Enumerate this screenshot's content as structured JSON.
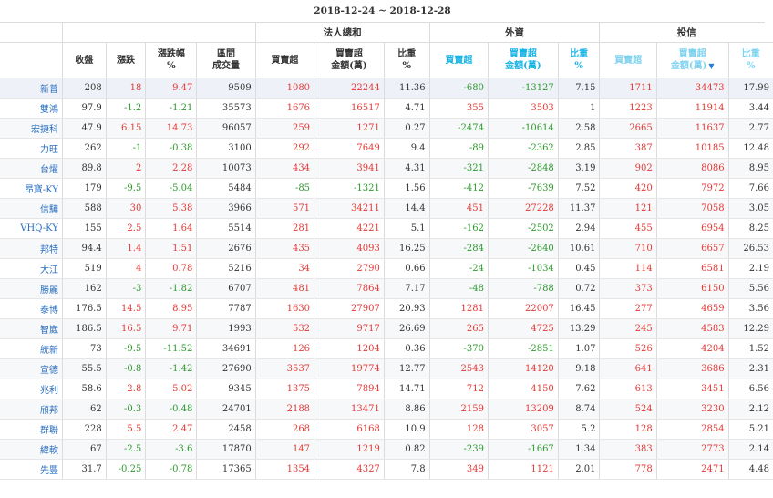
{
  "title": "2018-12-24 ~ 2018-12-28",
  "groups": {
    "institutional_total": "法人總和",
    "foreign": "外資",
    "investment_trust": "投信"
  },
  "headers": {
    "close": "收盤",
    "change": "漲跌",
    "change_pct_line1": "漲跌幅",
    "change_pct_line2": "%",
    "volume_line1": "區間",
    "volume_line2": "成交量",
    "net_buy": "買賣超",
    "net_amount_line1": "買賣超",
    "net_amount_line2": "金額(萬)",
    "ratio_line1": "比重",
    "ratio_line2": "%",
    "sort_indicator": "▼"
  },
  "rows": [
    {
      "name": "新普",
      "close": "208",
      "change": "18",
      "pct": "9.47",
      "vol": "9509",
      "t_net": "1080",
      "t_amt": "22244",
      "t_ratio": "11.36",
      "f_net": "-680",
      "f_amt": "-13127",
      "f_ratio": "7.15",
      "i_net": "1711",
      "i_amt": "34473",
      "i_ratio": "17.99"
    },
    {
      "name": "雙鴻",
      "close": "97.9",
      "change": "-1.2",
      "pct": "-1.21",
      "vol": "35573",
      "t_net": "1676",
      "t_amt": "16517",
      "t_ratio": "4.71",
      "f_net": "355",
      "f_amt": "3503",
      "f_ratio": "1",
      "i_net": "1223",
      "i_amt": "11914",
      "i_ratio": "3.44"
    },
    {
      "name": "宏捷科",
      "close": "47.9",
      "change": "6.15",
      "pct": "14.73",
      "vol": "96057",
      "t_net": "259",
      "t_amt": "1271",
      "t_ratio": "0.27",
      "f_net": "-2474",
      "f_amt": "-10614",
      "f_ratio": "2.58",
      "i_net": "2665",
      "i_amt": "11637",
      "i_ratio": "2.77"
    },
    {
      "name": "力旺",
      "close": "262",
      "change": "-1",
      "pct": "-0.38",
      "vol": "3100",
      "t_net": "292",
      "t_amt": "7649",
      "t_ratio": "9.4",
      "f_net": "-89",
      "f_amt": "-2362",
      "f_ratio": "2.85",
      "i_net": "387",
      "i_amt": "10185",
      "i_ratio": "12.48"
    },
    {
      "name": "台燿",
      "close": "89.8",
      "change": "2",
      "pct": "2.28",
      "vol": "10073",
      "t_net": "434",
      "t_amt": "3941",
      "t_ratio": "4.31",
      "f_net": "-321",
      "f_amt": "-2848",
      "f_ratio": "3.19",
      "i_net": "902",
      "i_amt": "8086",
      "i_ratio": "8.95"
    },
    {
      "name": "昂寶-KY",
      "close": "179",
      "change": "-9.5",
      "pct": "-5.04",
      "vol": "5484",
      "t_net": "-85",
      "t_amt": "-1321",
      "t_ratio": "1.56",
      "f_net": "-412",
      "f_amt": "-7639",
      "f_ratio": "7.52",
      "i_net": "420",
      "i_amt": "7972",
      "i_ratio": "7.66"
    },
    {
      "name": "信驊",
      "close": "588",
      "change": "30",
      "pct": "5.38",
      "vol": "3966",
      "t_net": "571",
      "t_amt": "34211",
      "t_ratio": "14.4",
      "f_net": "451",
      "f_amt": "27228",
      "f_ratio": "11.37",
      "i_net": "121",
      "i_amt": "7058",
      "i_ratio": "3.05"
    },
    {
      "name": "VHQ-KY",
      "close": "155",
      "change": "2.5",
      "pct": "1.64",
      "vol": "5514",
      "t_net": "281",
      "t_amt": "4221",
      "t_ratio": "5.1",
      "f_net": "-162",
      "f_amt": "-2502",
      "f_ratio": "2.94",
      "i_net": "455",
      "i_amt": "6954",
      "i_ratio": "8.25"
    },
    {
      "name": "邦特",
      "close": "94.4",
      "change": "1.4",
      "pct": "1.51",
      "vol": "2676",
      "t_net": "435",
      "t_amt": "4093",
      "t_ratio": "16.25",
      "f_net": "-284",
      "f_amt": "-2640",
      "f_ratio": "10.61",
      "i_net": "710",
      "i_amt": "6657",
      "i_ratio": "26.53"
    },
    {
      "name": "大江",
      "close": "519",
      "change": "4",
      "pct": "0.78",
      "vol": "5216",
      "t_net": "34",
      "t_amt": "2790",
      "t_ratio": "0.66",
      "f_net": "-24",
      "f_amt": "-1034",
      "f_ratio": "0.45",
      "i_net": "114",
      "i_amt": "6581",
      "i_ratio": "2.19"
    },
    {
      "name": "勝麗",
      "close": "162",
      "change": "-3",
      "pct": "-1.82",
      "vol": "6707",
      "t_net": "481",
      "t_amt": "7864",
      "t_ratio": "7.17",
      "f_net": "-48",
      "f_amt": "-788",
      "f_ratio": "0.72",
      "i_net": "373",
      "i_amt": "6150",
      "i_ratio": "5.56"
    },
    {
      "name": "泰博",
      "close": "176.5",
      "change": "14.5",
      "pct": "8.95",
      "vol": "7787",
      "t_net": "1630",
      "t_amt": "27907",
      "t_ratio": "20.93",
      "f_net": "1281",
      "f_amt": "22007",
      "f_ratio": "16.45",
      "i_net": "277",
      "i_amt": "4659",
      "i_ratio": "3.56"
    },
    {
      "name": "智崴",
      "close": "186.5",
      "change": "16.5",
      "pct": "9.71",
      "vol": "1993",
      "t_net": "532",
      "t_amt": "9717",
      "t_ratio": "26.69",
      "f_net": "265",
      "f_amt": "4725",
      "f_ratio": "13.29",
      "i_net": "245",
      "i_amt": "4583",
      "i_ratio": "12.29"
    },
    {
      "name": "統新",
      "close": "73",
      "change": "-9.5",
      "pct": "-11.52",
      "vol": "34691",
      "t_net": "126",
      "t_amt": "1204",
      "t_ratio": "0.36",
      "f_net": "-370",
      "f_amt": "-2851",
      "f_ratio": "1.07",
      "i_net": "526",
      "i_amt": "4204",
      "i_ratio": "1.52"
    },
    {
      "name": "宣德",
      "close": "55.5",
      "change": "-0.8",
      "pct": "-1.42",
      "vol": "27690",
      "t_net": "3537",
      "t_amt": "19774",
      "t_ratio": "12.77",
      "f_net": "2543",
      "f_amt": "14120",
      "f_ratio": "9.18",
      "i_net": "641",
      "i_amt": "3686",
      "i_ratio": "2.31"
    },
    {
      "name": "兆利",
      "close": "58.6",
      "change": "2.8",
      "pct": "5.02",
      "vol": "9345",
      "t_net": "1375",
      "t_amt": "7894",
      "t_ratio": "14.71",
      "f_net": "712",
      "f_amt": "4150",
      "f_ratio": "7.62",
      "i_net": "613",
      "i_amt": "3451",
      "i_ratio": "6.56"
    },
    {
      "name": "頎邦",
      "close": "62",
      "change": "-0.3",
      "pct": "-0.48",
      "vol": "24701",
      "t_net": "2188",
      "t_amt": "13471",
      "t_ratio": "8.86",
      "f_net": "2159",
      "f_amt": "13209",
      "f_ratio": "8.74",
      "i_net": "524",
      "i_amt": "3230",
      "i_ratio": "2.12"
    },
    {
      "name": "群聯",
      "close": "228",
      "change": "5.5",
      "pct": "2.47",
      "vol": "2458",
      "t_net": "268",
      "t_amt": "6168",
      "t_ratio": "10.9",
      "f_net": "128",
      "f_amt": "3057",
      "f_ratio": "5.2",
      "i_net": "128",
      "i_amt": "2854",
      "i_ratio": "5.21"
    },
    {
      "name": "緯軟",
      "close": "67",
      "change": "-2.5",
      "pct": "-3.6",
      "vol": "17870",
      "t_net": "147",
      "t_amt": "1219",
      "t_ratio": "0.82",
      "f_net": "-239",
      "f_amt": "-1667",
      "f_ratio": "1.34",
      "i_net": "383",
      "i_amt": "2773",
      "i_ratio": "2.14"
    },
    {
      "name": "先豐",
      "close": "31.7",
      "change": "-0.25",
      "pct": "-0.78",
      "vol": "17365",
      "t_net": "1354",
      "t_amt": "4327",
      "t_ratio": "7.8",
      "f_net": "349",
      "f_amt": "1121",
      "f_ratio": "2.01",
      "i_net": "778",
      "i_amt": "2471",
      "i_ratio": "4.48"
    }
  ],
  "colors": {
    "up": "#e53935",
    "down": "#2e9a2e",
    "name_link": "#2a6ebd",
    "header_accent": "#19b4e6"
  }
}
